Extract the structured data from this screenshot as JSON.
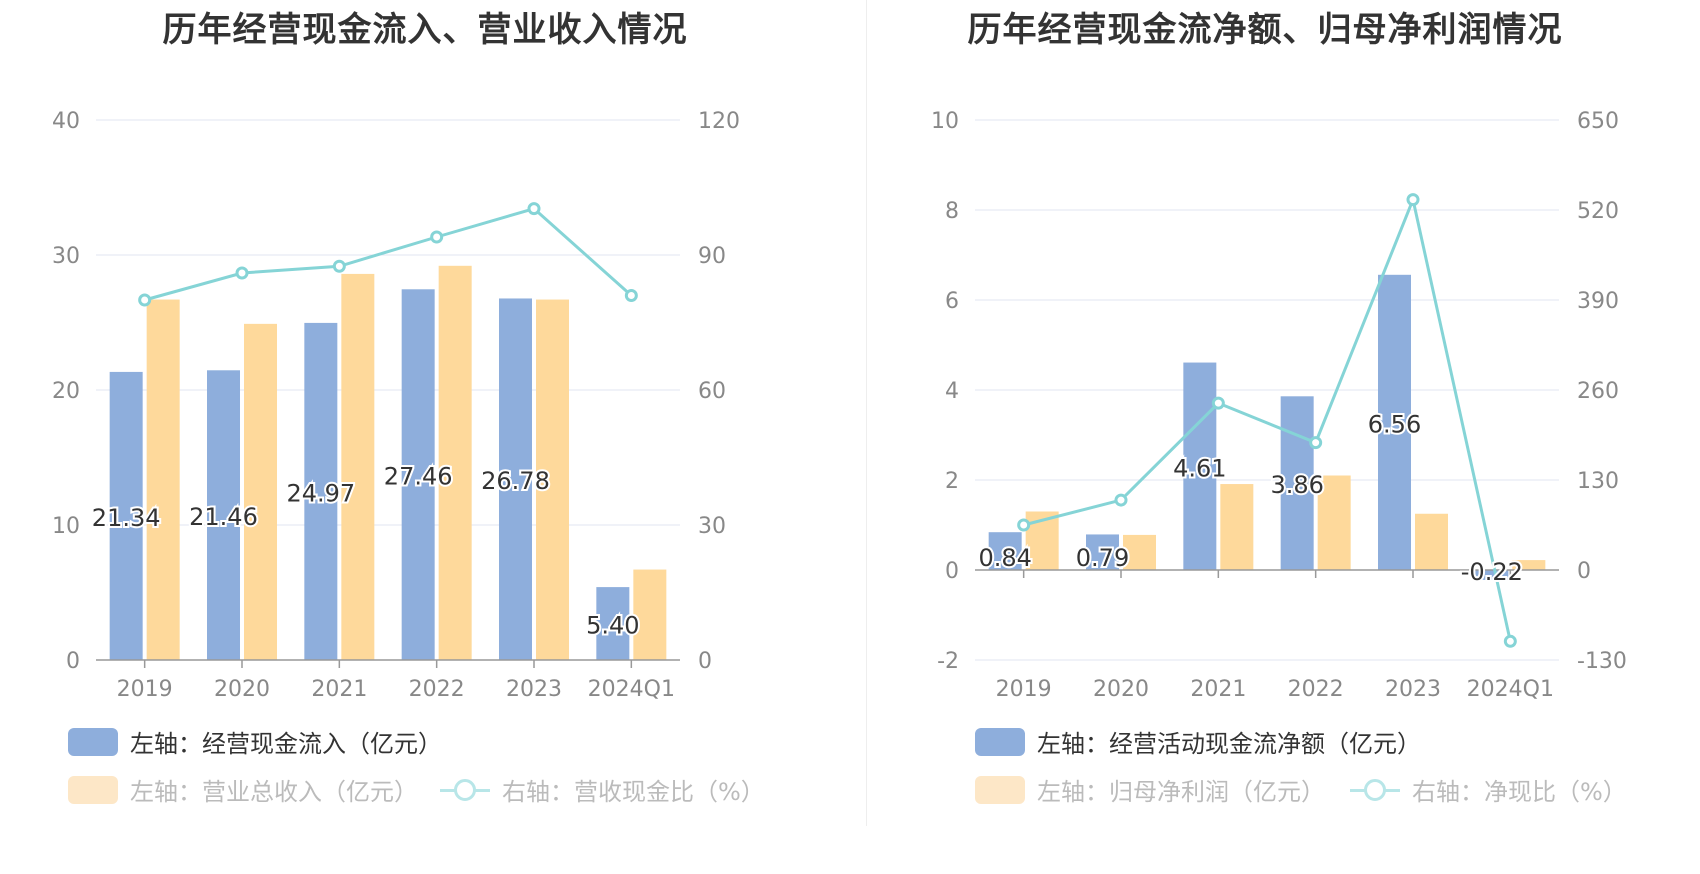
{
  "colors": {
    "bar_blue": "#8eaedc",
    "bar_orange": "#fed99b",
    "line_teal": "#85d4d6",
    "grid": "#e1e5f2",
    "axis": "#999999",
    "tick_text": "#888888"
  },
  "charts": [
    {
      "id": "left",
      "title": "历年经营现金流入、营业收入情况",
      "legend": {
        "bar1": "左轴：经营现金流入（亿元）",
        "bar2": "左轴：营业总收入（亿元）",
        "line": "右轴：营收现金比（%）"
      }
    },
    {
      "id": "right",
      "title": "历年经营现金流净额、归母净利润情况",
      "legend": {
        "bar1": "左轴：经营活动现金流净额（亿元）",
        "bar2": "左轴：归母净利润（亿元）",
        "line": "右轴：净现比（%）"
      }
    }
  ],
  "chart_data": [
    {
      "type": "bar",
      "title": "历年经营现金流入、营业收入情况",
      "categories": [
        "2019",
        "2020",
        "2021",
        "2022",
        "2023",
        "2024Q1"
      ],
      "left_axis": {
        "ylim": [
          0,
          40
        ],
        "ticks": [
          "0",
          "10",
          "20",
          "30",
          "40"
        ]
      },
      "right_axis": {
        "ylim": [
          0,
          120
        ],
        "ticks": [
          "0",
          "30",
          "60",
          "90",
          "120"
        ]
      },
      "series": [
        {
          "name": "左轴：经营现金流入（亿元）",
          "kind": "bar",
          "axis": "left",
          "values": [
            21.34,
            21.46,
            24.97,
            27.46,
            26.78,
            5.4
          ],
          "labels": [
            "21.34",
            "21.46",
            "24.97",
            "27.46",
            "26.78",
            "5.40"
          ]
        },
        {
          "name": "左轴：营业总收入（亿元）",
          "kind": "bar",
          "axis": "left",
          "values": [
            26.7,
            24.9,
            28.6,
            29.2,
            26.7,
            6.7
          ]
        },
        {
          "name": "右轴：营收现金比（%）",
          "kind": "line",
          "axis": "right",
          "values": [
            80,
            86,
            87.5,
            94,
            100.3,
            81
          ]
        }
      ],
      "grid": true,
      "legend_position": "bottom-left"
    },
    {
      "type": "bar",
      "title": "历年经营现金流净额、归母净利润情况",
      "categories": [
        "2019",
        "2020",
        "2021",
        "2022",
        "2023",
        "2024Q1"
      ],
      "left_axis": {
        "ylim": [
          -2,
          10
        ],
        "ticks": [
          "-2",
          "0",
          "2",
          "4",
          "6",
          "8",
          "10"
        ]
      },
      "right_axis": {
        "ylim": [
          -130,
          650
        ],
        "ticks": [
          "-130",
          "0",
          "130",
          "260",
          "390",
          "520",
          "650"
        ]
      },
      "series": [
        {
          "name": "左轴：经营活动现金流净额（亿元）",
          "kind": "bar",
          "axis": "left",
          "values": [
            0.84,
            0.79,
            4.61,
            3.86,
            6.56,
            -0.22
          ],
          "labels": [
            "0.84",
            "0.79",
            "4.61",
            "3.86",
            "6.56",
            "-0.22"
          ]
        },
        {
          "name": "左轴：归母净利润（亿元）",
          "kind": "bar",
          "axis": "left",
          "values": [
            1.3,
            0.78,
            1.91,
            2.1,
            1.25,
            0.22
          ]
        },
        {
          "name": "右轴：净现比（%）",
          "kind": "line",
          "axis": "right",
          "values": [
            65,
            101,
            241,
            184,
            535,
            -103
          ]
        }
      ],
      "grid": true,
      "legend_position": "bottom-left"
    }
  ]
}
